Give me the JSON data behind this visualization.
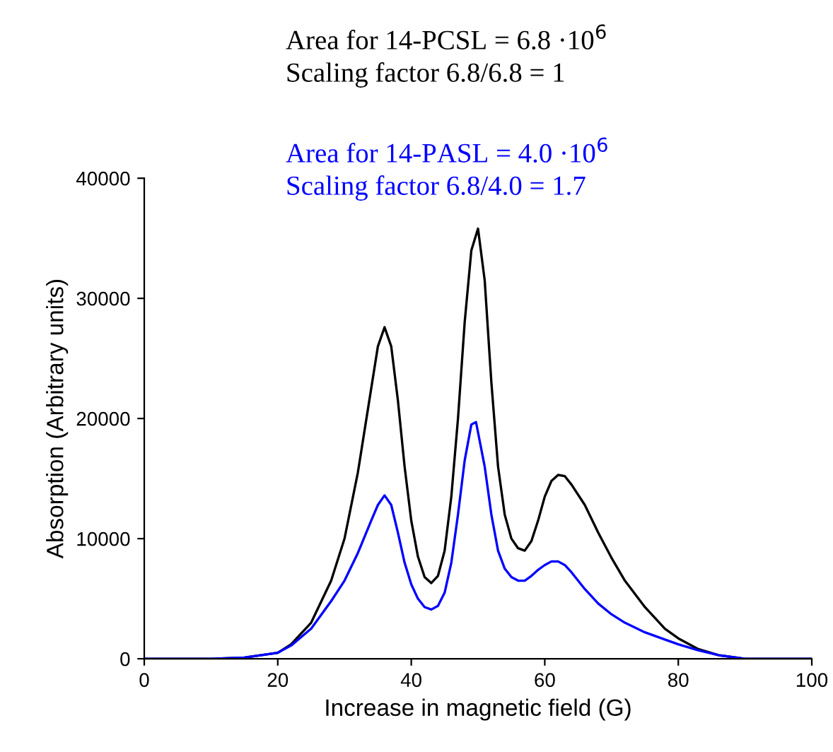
{
  "chart_data": {
    "type": "line",
    "xlabel": "Increase in magnetic field (G)",
    "ylabel": "Absorption (Arbitrary units)",
    "annotations": [
      "Area for 14-PCSL = 6.8 ·10$^{6}$",
      "Scaling factor 6.8/6.8 = 1",
      "Area for 14-PASL = 4.0 ·10$^{6}$",
      "Scaling factor 6.8/4.0 = 1.7"
    ],
    "xlim": [
      0,
      100
    ],
    "xticks": [
      0,
      20,
      40,
      60,
      80,
      100
    ],
    "ylim": [
      0,
      40000
    ],
    "yticks": [
      0,
      10000,
      20000,
      30000,
      40000
    ],
    "grid": false,
    "legend": false,
    "marker": "none",
    "line_style": "solid",
    "series": [
      {
        "color": "#000000",
        "x": [
          0,
          10,
          15,
          20,
          22,
          25,
          28,
          30,
          32,
          34,
          35,
          36,
          37,
          38,
          39,
          40,
          41,
          42,
          43,
          44,
          45,
          46,
          47,
          48,
          49,
          50,
          51,
          52,
          53,
          54,
          55,
          56,
          57,
          58,
          59,
          60,
          61,
          62,
          63,
          64,
          66,
          68,
          70,
          72,
          75,
          78,
          80,
          83,
          86,
          90,
          100
        ],
        "values": [
          0,
          0,
          100,
          500,
          1200,
          3000,
          6500,
          10000,
          15500,
          22500,
          26000,
          27600,
          26000,
          21500,
          16000,
          11500,
          8500,
          6800,
          6300,
          6900,
          9000,
          13500,
          20000,
          28000,
          34000,
          35800,
          31500,
          23000,
          16000,
          12000,
          10000,
          9200,
          9000,
          9800,
          11500,
          13500,
          14800,
          15300,
          15200,
          14500,
          12800,
          10500,
          8400,
          6500,
          4300,
          2500,
          1700,
          800,
          300,
          0,
          0
        ]
      },
      {
        "color": "#0000ff",
        "x": [
          0,
          10,
          15,
          20,
          22,
          25,
          28,
          30,
          32,
          34,
          35,
          36,
          37,
          38,
          39,
          40,
          41,
          42,
          43,
          44,
          45,
          46,
          47,
          48,
          49,
          49.7,
          51,
          52,
          53,
          54,
          55,
          56,
          57,
          58,
          59,
          60,
          61,
          62,
          63,
          64,
          66,
          68,
          70,
          72,
          75,
          78,
          80,
          83,
          86,
          90,
          100
        ],
        "values": [
          0,
          0,
          100,
          500,
          1100,
          2500,
          4800,
          6500,
          8800,
          11500,
          12800,
          13600,
          12800,
          10500,
          8000,
          6200,
          5000,
          4300,
          4100,
          4400,
          5500,
          8000,
          12000,
          16500,
          19500,
          19700,
          16000,
          12000,
          9000,
          7500,
          6800,
          6500,
          6500,
          6900,
          7400,
          7800,
          8100,
          8100,
          7800,
          7200,
          5800,
          4600,
          3700,
          3000,
          2200,
          1600,
          1200,
          700,
          300,
          0,
          0
        ]
      }
    ]
  }
}
